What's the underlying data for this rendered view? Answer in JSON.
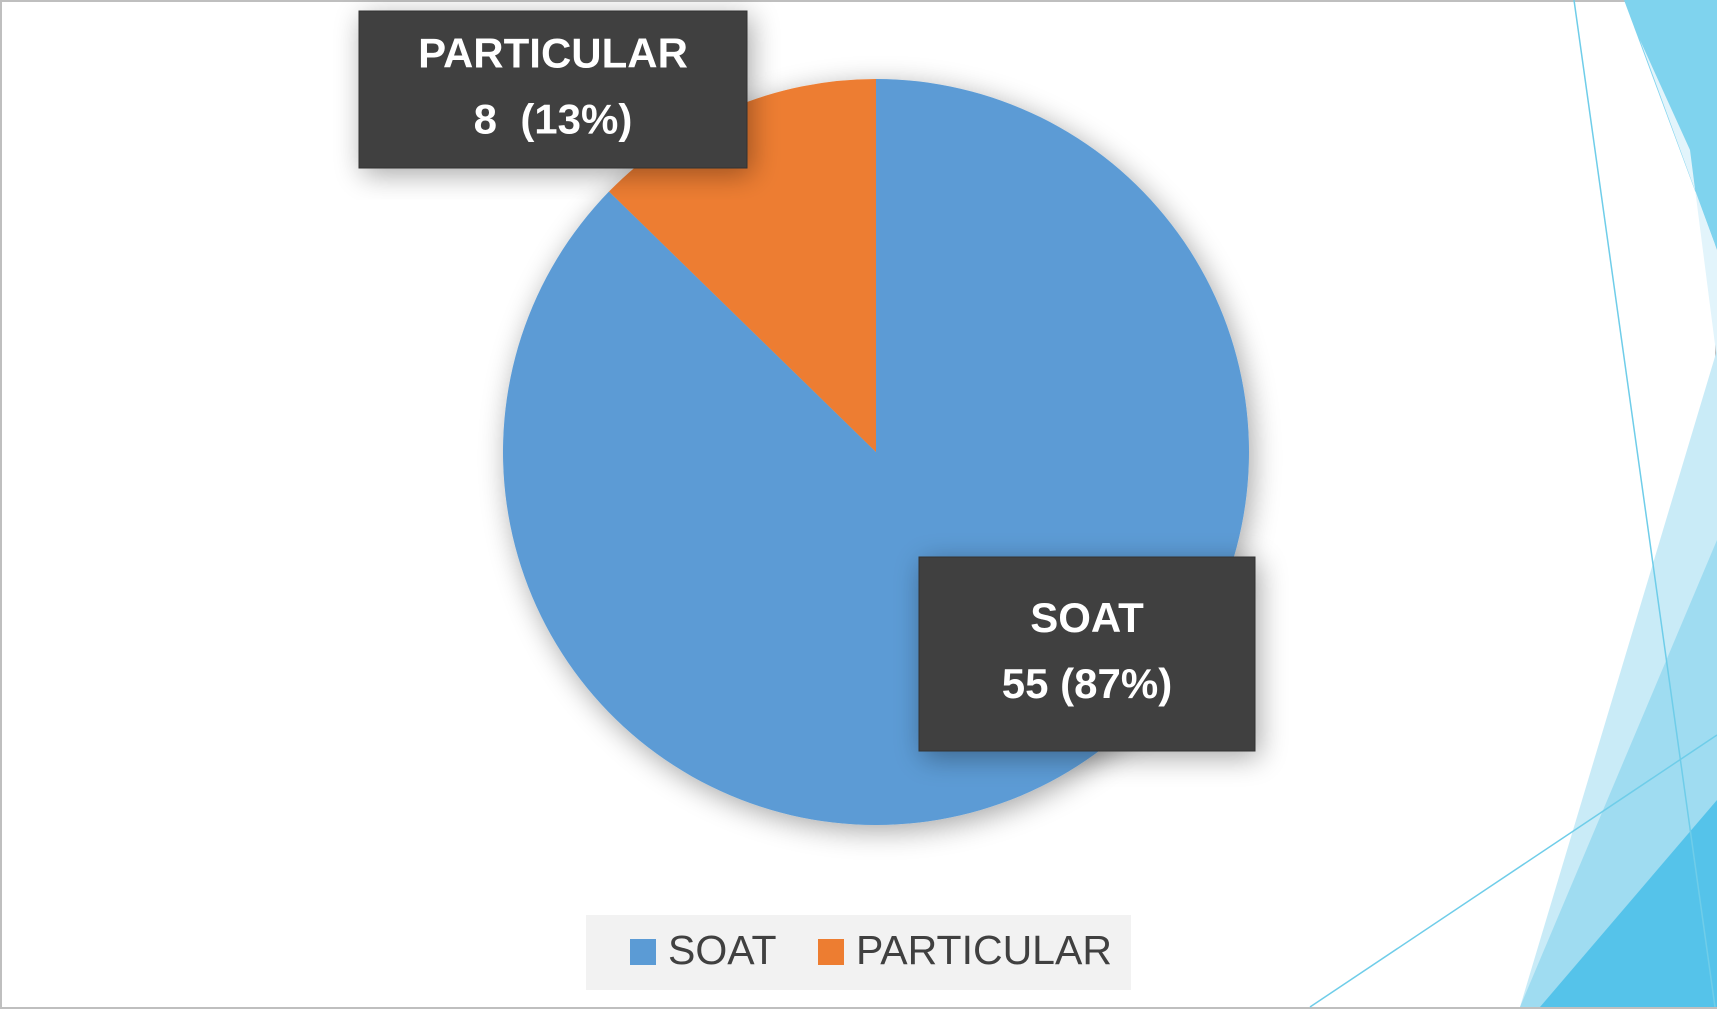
{
  "chart_data": {
    "type": "pie",
    "categories": [
      "SOAT",
      "PARTICULAR"
    ],
    "values": [
      55,
      8
    ],
    "value_labels": [
      "55 (87%)",
      "8  (13%)"
    ],
    "colors": [
      "#5b9bd5",
      "#ed7d31"
    ],
    "legend": "bottom"
  }
}
